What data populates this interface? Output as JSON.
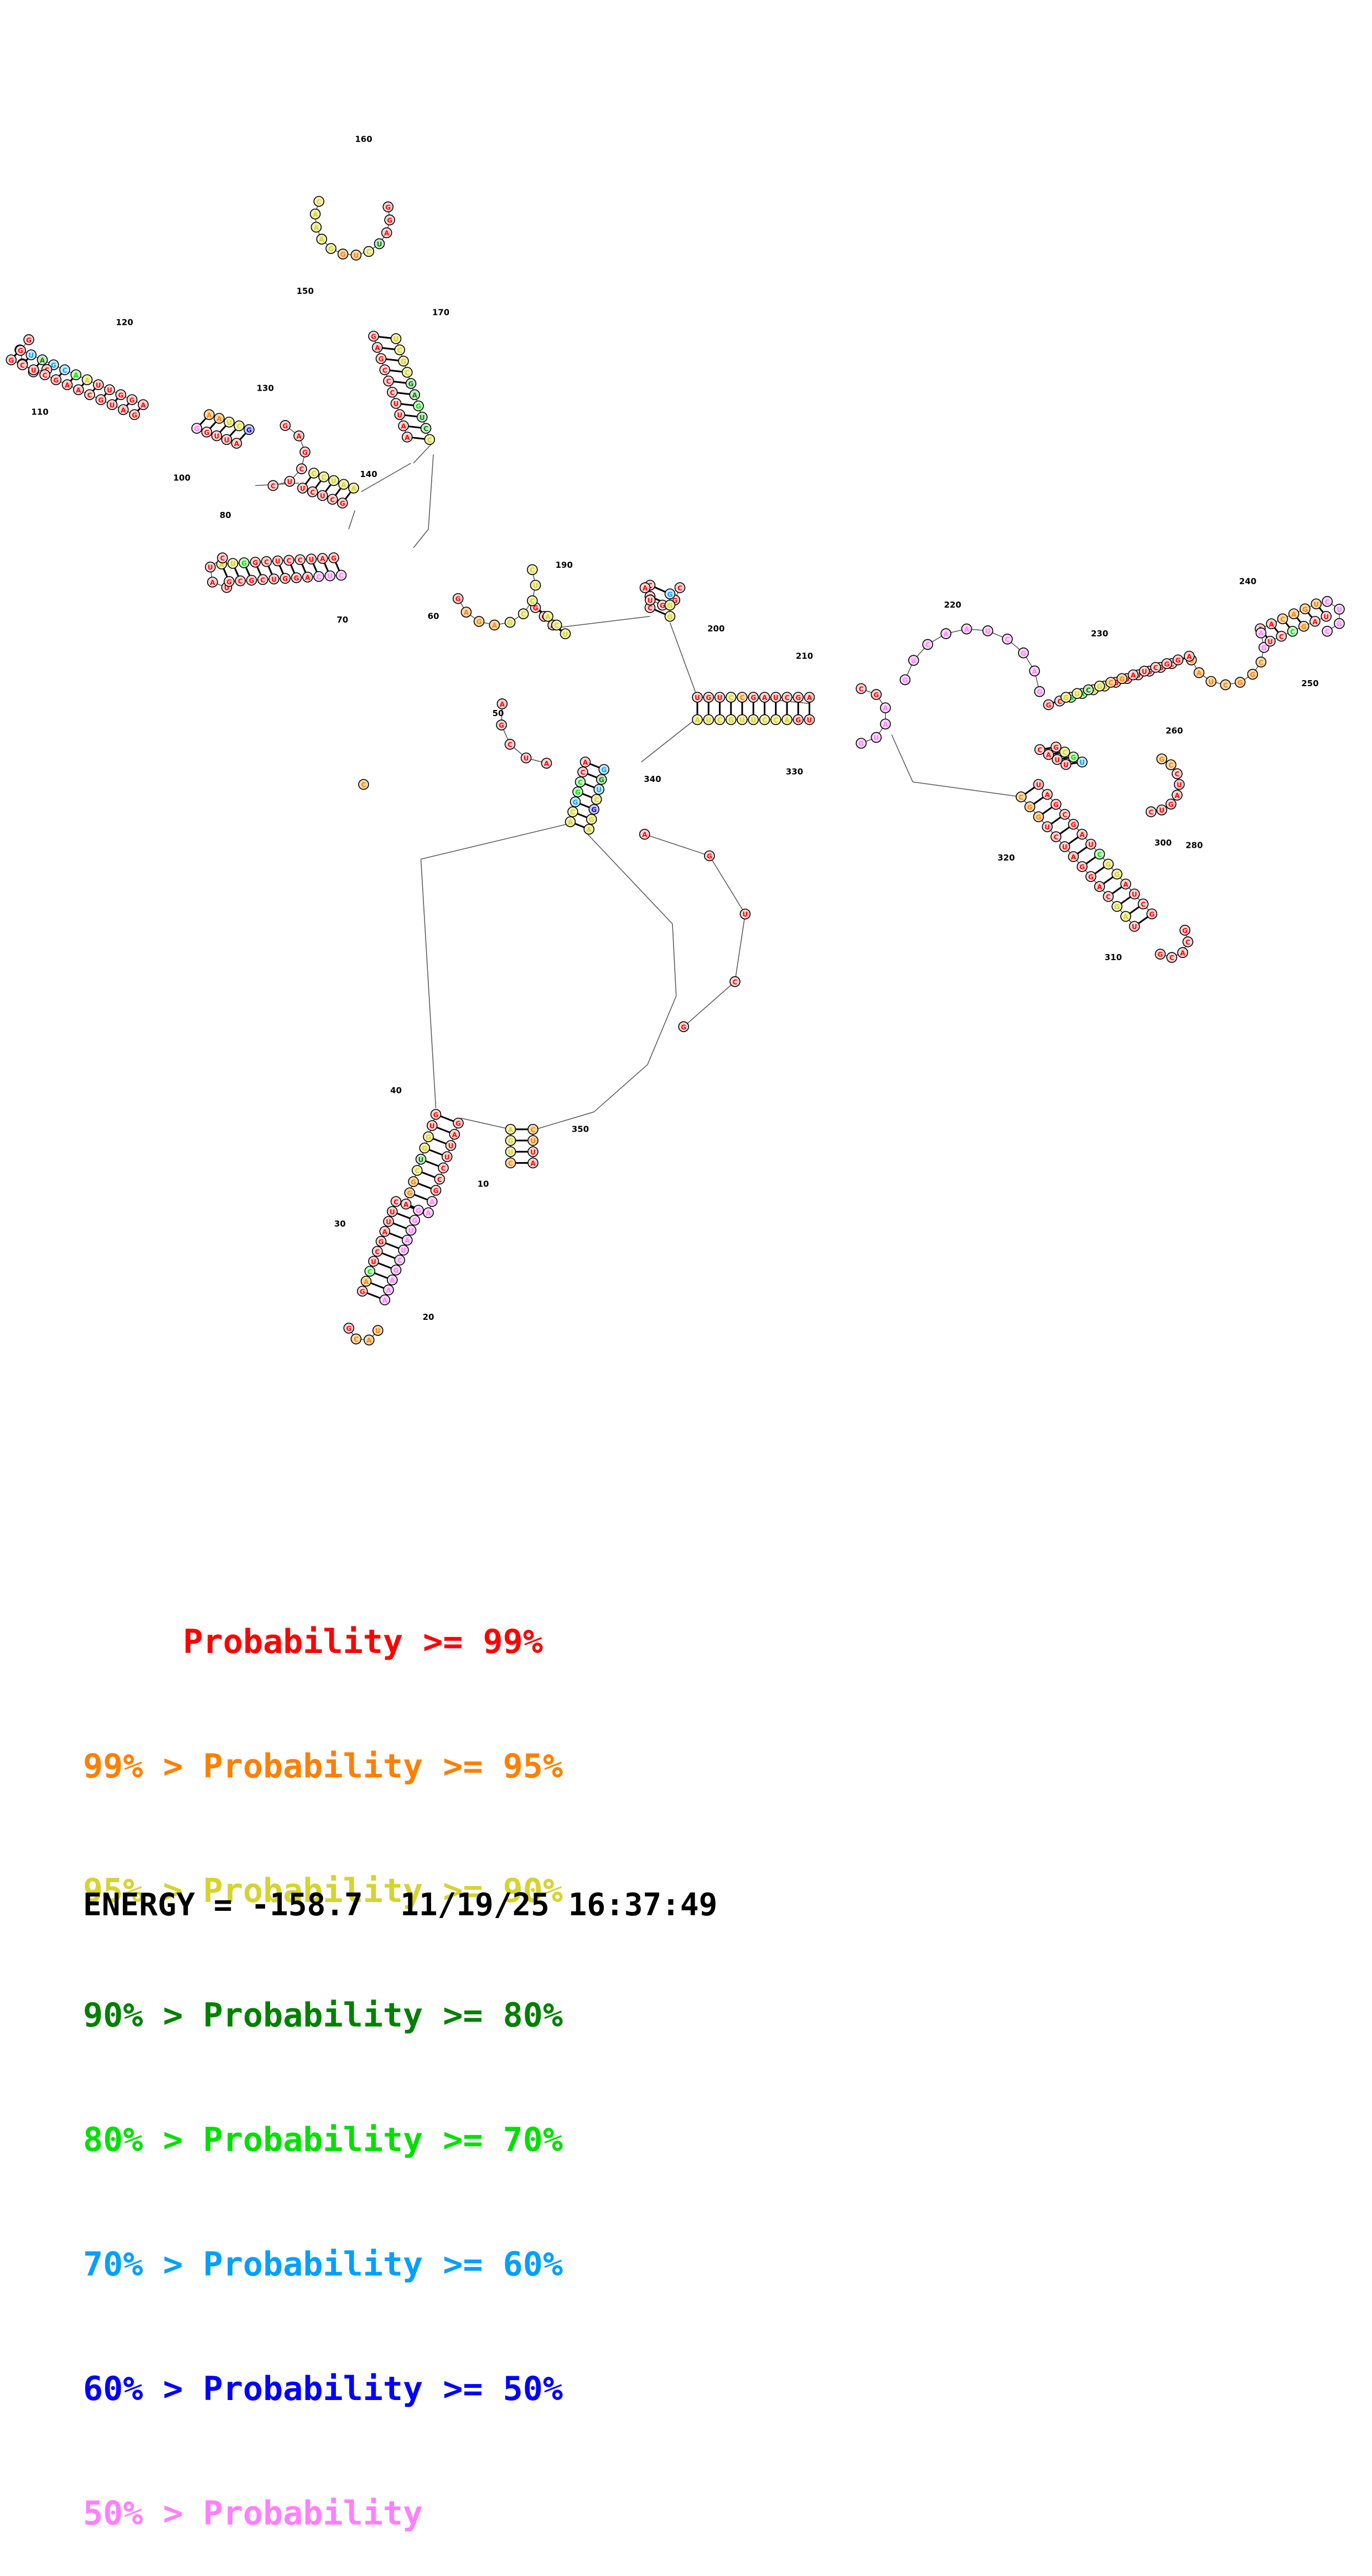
{
  "colors": {
    "p99": "#ff0000",
    "p95": "#ff8000",
    "p90": "#d4d430",
    "p80": "#008000",
    "p70": "#00e000",
    "p60": "#00a0ff",
    "p50": "#0000ff",
    "plt50": "#ff80ff"
  },
  "legend": [
    {
      "text": "     Probability >= 99%",
      "color_key": "p99"
    },
    {
      "text": "99% > Probability >= 95%",
      "color_key": "p95"
    },
    {
      "text": "95% > Probability >= 90%",
      "color_key": "p90"
    },
    {
      "text": "90% > Probability >= 80%",
      "color_key": "p80"
    },
    {
      "text": "80% > Probability >= 70%",
      "color_key": "p70"
    },
    {
      "text": "70% > Probability >= 60%",
      "color_key": "p60"
    },
    {
      "text": "60% > Probability >= 50%",
      "color_key": "p50"
    },
    {
      "text": "50% > Probability",
      "color_key": "plt50"
    }
  ],
  "footer": {
    "energy_label": "ENERGY = ",
    "energy_value": "-158.7",
    "timestamp": "11/19/25 16:37:49"
  },
  "position_labels": [
    "10",
    "20",
    "30",
    "40",
    "50",
    "60",
    "70",
    "80",
    "100",
    "110",
    "120",
    "130",
    "140",
    "150",
    "160",
    "170",
    "190",
    "200",
    "210",
    "220",
    "230",
    "240",
    "250",
    "260",
    "280",
    "300",
    "310",
    "320",
    "330",
    "340",
    "350"
  ],
  "structure": {
    "sequence": "GUGGUCGGACUUAGCUCAGGAUCCUCGGUAAGGUUAACGAUAGCUAAGCUCUGAGCCCUUAAGGACCCUGUCCGAUCGAGCGAAGGUUGGCAACAGUCGGUCUAGGACGAUCAUUACCGGCAAGUCCUACGUAUCCCCGGGAGCUCGGAUCUGGAAACCUCCGAGAGCGGUACGAAUGGUCAAUCGAGCUGCAGCGGCUAGGCCUAGUCGCACGAUCGAAGUCGGAUUCCGAAGGUAUCGAAACUCAGGUCGCGGAUGCAAGCUCGAUUGGAAUCCUCGCGAGUCCACUGGGAUCGUUCCAGUGUCGCGAUCGGAUCCGAUUAGCGAUCGGAUCGGC",
    "prob_classes": "aaccdcbbaaaaaaaaebaaaaaaaaaeccaaaaaceffdfcgccbbaaaaaaaaaaaaaaaaaaaaaaaacbaaaaaaaaeeccaaaaaaaabbbbbbbaaaaaaaaccaaaaaaaeefcccccbbbbbaaaaaaaaaaaaaaaaaaadcbbccccccccccbbbaaaaaaaahhhhhhhhhhhhhhhhhhhhbbbbbbbbbaaaaaaaaaaaaaaaaaaaaaaaaaaaahhhhhhhhhhhhhhhaaaaaaaaaaaaaaaaaaaaaaaahcccccccccddeddccccccfccccccccc"
  }
}
